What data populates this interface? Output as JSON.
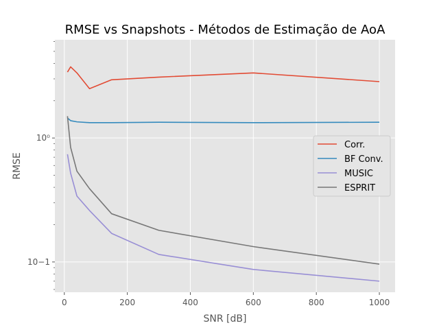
{
  "chart_data": {
    "type": "line",
    "title": "RMSE vs Snapshots - Métodos de Estimação de AoA",
    "xlabel": "SNR [dB]",
    "ylabel": "RMSE",
    "xlim": [
      -30,
      1050
    ],
    "ylim": [
      0.057,
      6.2
    ],
    "yscale": "log",
    "grid": true,
    "legend_position": "center-right",
    "x": [
      10,
      20,
      40,
      80,
      150,
      300,
      600,
      1000
    ],
    "xticks": [
      0,
      200,
      400,
      600,
      800,
      1000
    ],
    "xtick_labels": [
      "0",
      "200",
      "400",
      "600",
      "800",
      "1000"
    ],
    "yticks": [
      0.1,
      1.0
    ],
    "ytick_labels": [
      "10−1",
      "10⁰"
    ],
    "series": [
      {
        "name": "Corr.",
        "color": "#E24A33",
        "values": [
          3.4,
          3.75,
          3.35,
          2.5,
          2.95,
          3.1,
          3.35,
          2.85
        ]
      },
      {
        "name": "BF Conv.",
        "color": "#348ABD",
        "values": [
          1.45,
          1.38,
          1.35,
          1.33,
          1.33,
          1.34,
          1.33,
          1.34
        ]
      },
      {
        "name": "MUSIC",
        "color": "#988ED5",
        "values": [
          0.74,
          0.52,
          0.34,
          0.26,
          0.17,
          0.115,
          0.087,
          0.07
        ]
      },
      {
        "name": "ESPRIT",
        "color": "#777777",
        "values": [
          1.5,
          0.84,
          0.54,
          0.39,
          0.245,
          0.18,
          0.133,
          0.096
        ]
      }
    ]
  }
}
